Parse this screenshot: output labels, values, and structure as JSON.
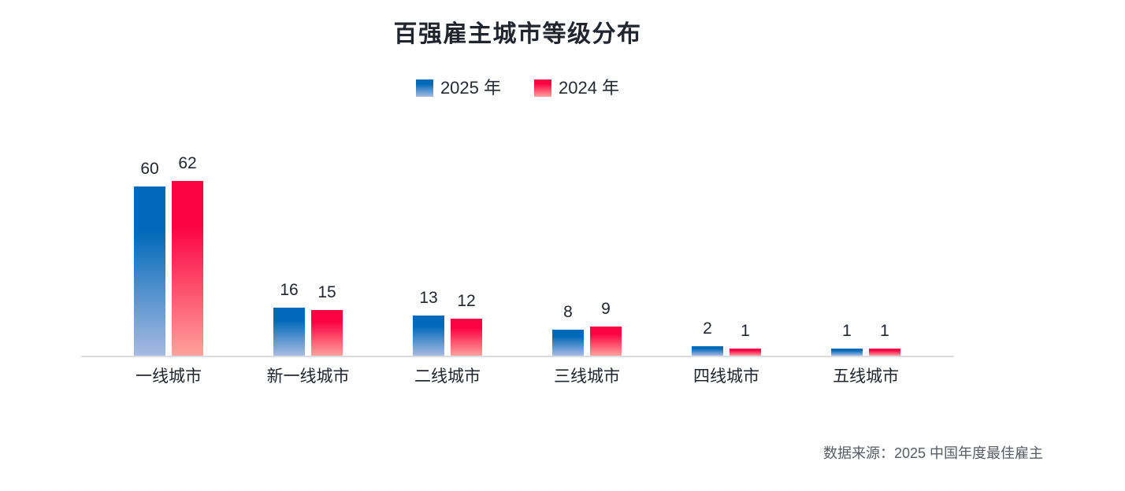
{
  "title": "百强雇主城市等级分布",
  "legend": {
    "items": [
      {
        "label": "2025 年"
      },
      {
        "label": "2024 年"
      }
    ]
  },
  "source": "数据来源：2025 中国年度最佳雇主",
  "colors": {
    "series_2025_top": "#0069b9",
    "series_2025_bottom": "#a7bae2",
    "series_2024_top": "#fb0343",
    "series_2024_bottom": "#ffa29b",
    "axis_line": "#d9dce1",
    "text_dark": "#21262e",
    "source_text": "#575c64"
  },
  "chart_data": {
    "type": "bar",
    "title": "百强雇主城市等级分布",
    "categories": [
      "一线城市",
      "新一线城市",
      "二线城市",
      "三线城市",
      "四线城市",
      "五线城市"
    ],
    "series": [
      {
        "name": "2025 年",
        "values": [
          60,
          16,
          13,
          8,
          2,
          1
        ],
        "color_top": "#0069b9",
        "color_bottom": "#a7bae2"
      },
      {
        "name": "2024 年",
        "values": [
          62,
          15,
          12,
          9,
          1,
          1
        ],
        "color_top": "#fb0343",
        "color_bottom": "#ffa29b"
      }
    ],
    "xlabel": "",
    "ylabel": "",
    "ylim": [
      0,
      70
    ],
    "grid": false,
    "legend_position": "top",
    "value_labels": true
  }
}
